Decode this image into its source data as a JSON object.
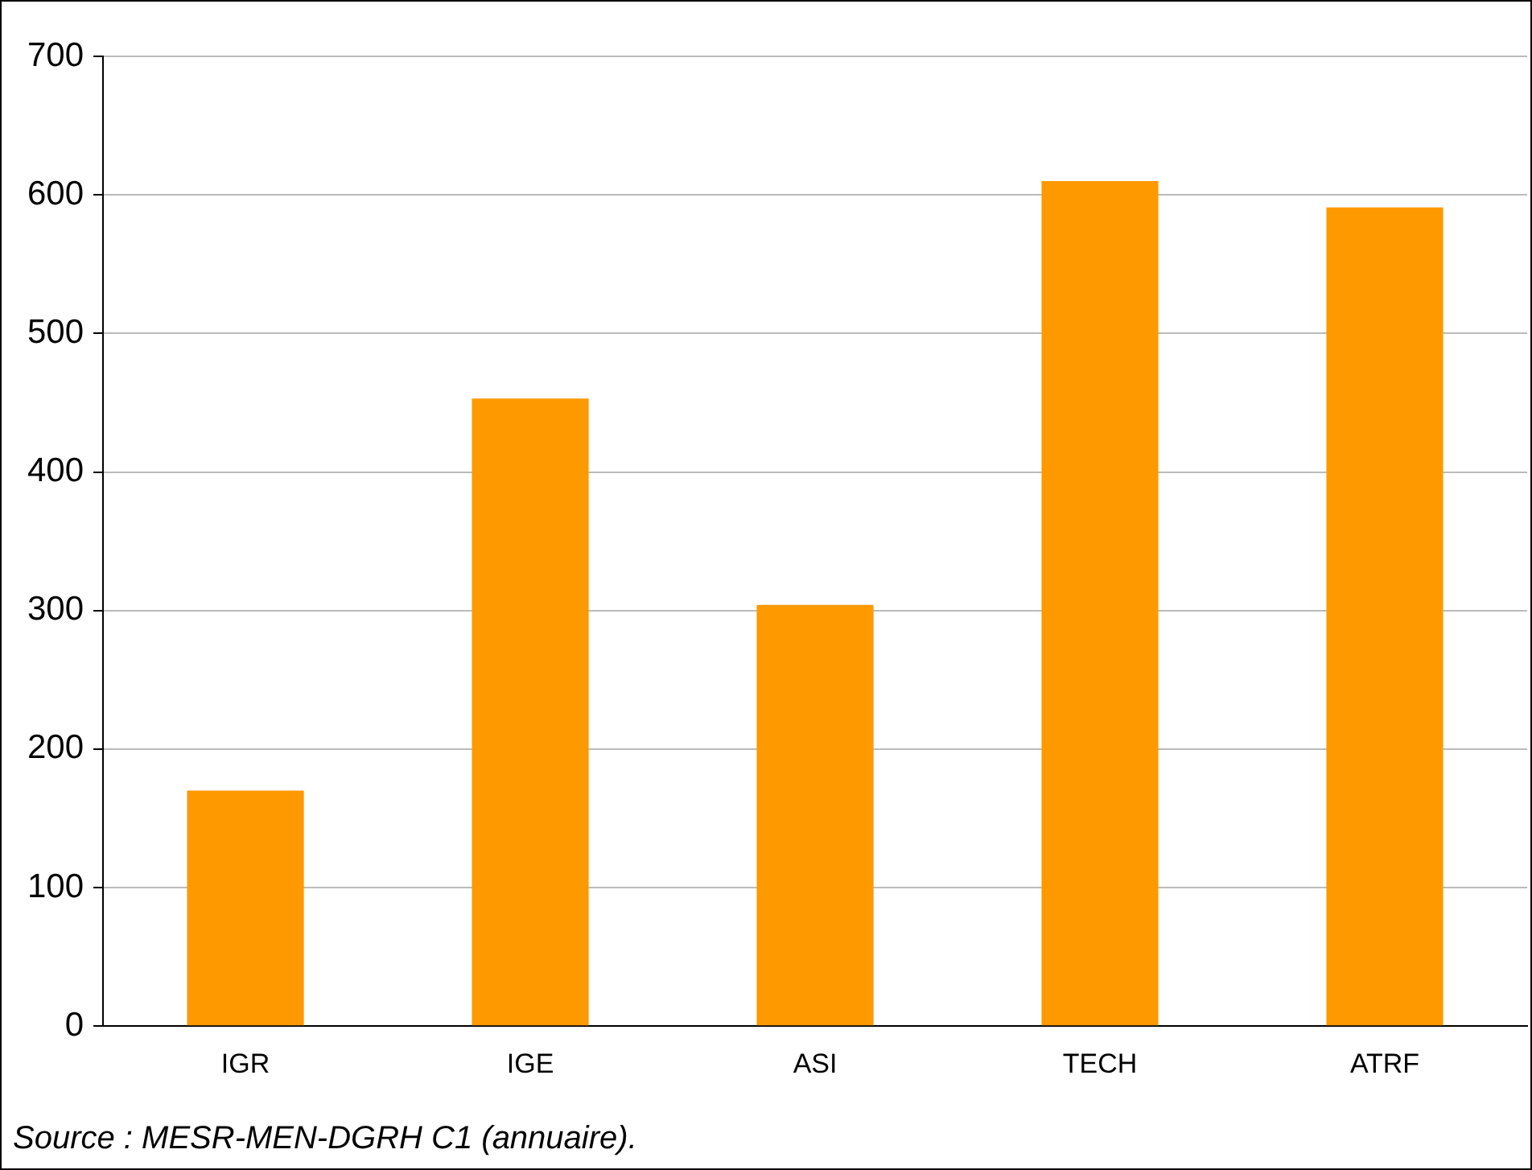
{
  "chart_data": {
    "type": "bar",
    "categories": [
      "IGR",
      "IGE",
      "ASI",
      "TECH",
      "ATRF"
    ],
    "values": [
      170,
      453,
      304,
      610,
      591
    ],
    "color": "#ff9900",
    "ylim": [
      0,
      700
    ],
    "yticks": [
      0,
      100,
      200,
      300,
      400,
      500,
      600,
      700
    ],
    "grid": "y",
    "legend": false,
    "annotations": [
      "Source : MESR-MEN-DGRH C1 (annuaire)."
    ]
  }
}
